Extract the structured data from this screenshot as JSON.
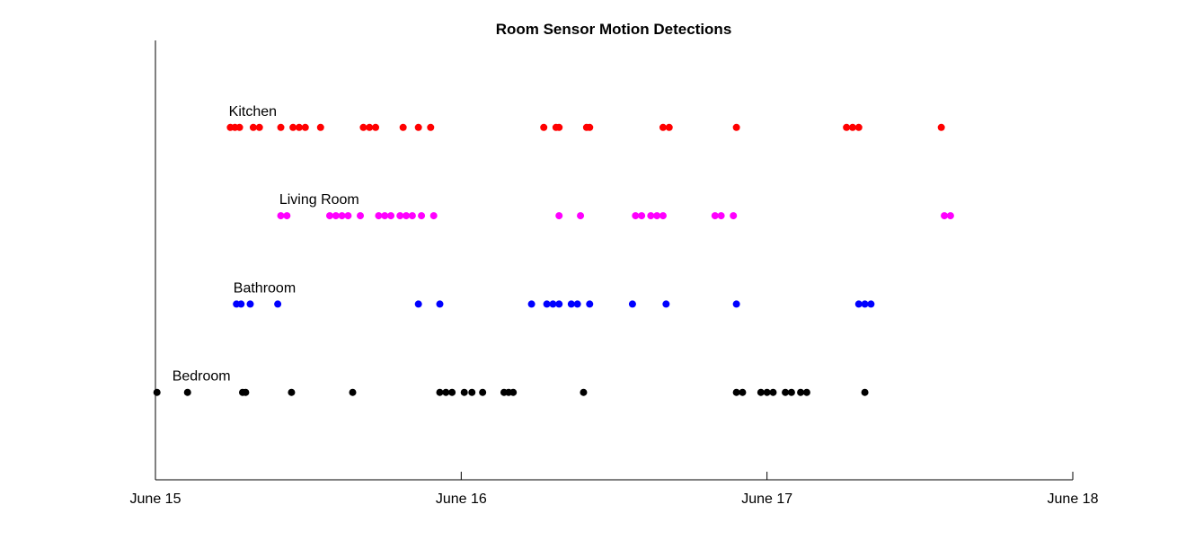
{
  "chart_data": {
    "type": "scatter",
    "title": "Room Sensor Motion Detections",
    "xlabel": "",
    "ylabel": "",
    "x_unit": "days since June 15",
    "xlim": [
      0,
      3
    ],
    "ylim": [
      0,
      5
    ],
    "x_ticks": [
      {
        "value": 0,
        "label": "June 15"
      },
      {
        "value": 1,
        "label": "June 16"
      },
      {
        "value": 2,
        "label": "June 17"
      },
      {
        "value": 3,
        "label": "June 18"
      }
    ],
    "grid": false,
    "legend": "none",
    "series": [
      {
        "name": "Kitchen",
        "color": "#ff0000",
        "y": 4,
        "label_x": 0.24,
        "x": [
          0.245,
          0.26,
          0.275,
          0.32,
          0.34,
          0.41,
          0.45,
          0.47,
          0.49,
          0.54,
          0.68,
          0.7,
          0.72,
          0.81,
          0.86,
          0.9,
          1.27,
          1.31,
          1.32,
          1.41,
          1.42,
          1.66,
          1.68,
          1.9,
          2.26,
          2.28,
          2.3,
          2.57
        ]
      },
      {
        "name": "Living Room",
        "color": "#ff00ff",
        "y": 3,
        "label_x": 0.405,
        "x": [
          0.41,
          0.43,
          0.57,
          0.59,
          0.61,
          0.63,
          0.67,
          0.73,
          0.75,
          0.77,
          0.8,
          0.82,
          0.84,
          0.87,
          0.91,
          1.32,
          1.39,
          1.57,
          1.59,
          1.62,
          1.64,
          1.66,
          1.83,
          1.85,
          1.89,
          2.58,
          2.6
        ]
      },
      {
        "name": "Bathroom",
        "color": "#0000ff",
        "y": 2,
        "label_x": 0.255,
        "x": [
          0.265,
          0.28,
          0.31,
          0.4,
          0.86,
          0.93,
          1.23,
          1.28,
          1.3,
          1.32,
          1.36,
          1.38,
          1.42,
          1.56,
          1.67,
          1.9,
          2.3,
          2.32,
          2.34
        ]
      },
      {
        "name": "Bedroom",
        "color": "#000000",
        "y": 1,
        "label_x": 0.055,
        "x": [
          0.005,
          0.105,
          0.285,
          0.295,
          0.445,
          0.645,
          0.93,
          0.95,
          0.97,
          1.01,
          1.035,
          1.07,
          1.14,
          1.155,
          1.17,
          1.4,
          1.9,
          1.92,
          1.98,
          2.0,
          2.02,
          2.06,
          2.08,
          2.11,
          2.13,
          2.32
        ]
      }
    ]
  }
}
